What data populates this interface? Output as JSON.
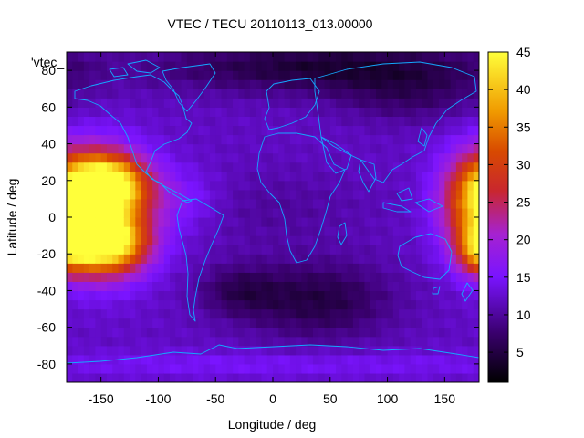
{
  "chart_data": {
    "type": "heatmap",
    "title": "VTEC / TECU 20110113_013.00000",
    "xlabel": "Longitude / deg",
    "ylabel": "Latitude / deg",
    "series_key": "'vtec_",
    "xlim": [
      -180,
      180
    ],
    "ylim": [
      -90,
      90
    ],
    "x_ticks": [
      -150,
      -100,
      -50,
      0,
      50,
      100,
      150
    ],
    "y_ticks": [
      -80,
      -60,
      -40,
      -20,
      0,
      20,
      40,
      60,
      80
    ],
    "colorbar": {
      "min": 1,
      "max": 45,
      "ticks": [
        5,
        10,
        15,
        20,
        25,
        30,
        35,
        40,
        45
      ],
      "colormap": "black-purple-red-orange-yellow"
    },
    "field": {
      "background": 12,
      "components": [
        {
          "lon": -145,
          "lat": 18,
          "amp": 28,
          "sig_lon": 24,
          "sig_lat": 11
        },
        {
          "lon": -145,
          "lat": -14,
          "amp": 28,
          "sig_lon": 24,
          "sig_lat": 11
        },
        {
          "lon": -150,
          "lat": 3,
          "amp": 18,
          "sig_lon": 30,
          "sig_lat": 22
        },
        {
          "lon": 178,
          "lat": 10,
          "amp": 18,
          "sig_lon": 22,
          "sig_lat": 18
        },
        {
          "lon": 180,
          "lat": -18,
          "amp": 14,
          "sig_lon": 14,
          "sig_lat": 9
        },
        {
          "lon": -80,
          "lat": 10,
          "amp": 4,
          "sig_lon": 25,
          "sig_lat": 12
        },
        {
          "lon": 40,
          "lat": -45,
          "amp": -7,
          "sig_lon": 45,
          "sig_lat": 15
        },
        {
          "lon": -30,
          "lat": -40,
          "amp": -5,
          "sig_lon": 25,
          "sig_lat": 10
        },
        {
          "lon": 0,
          "lat": 5,
          "amp": -2,
          "sig_lon": 60,
          "sig_lat": 15
        },
        {
          "lon": 50,
          "lat": 82,
          "amp": -8,
          "sig_lon": 110,
          "sig_lat": 10
        },
        {
          "lon": 120,
          "lat": 65,
          "amp": -4,
          "sig_lon": 45,
          "sig_lat": 10
        },
        {
          "lon": 0,
          "lat": -80,
          "amp": 3,
          "sig_lon": 200,
          "sig_lat": 5
        }
      ]
    },
    "coastlines": "continental outlines drawn in light blue"
  }
}
